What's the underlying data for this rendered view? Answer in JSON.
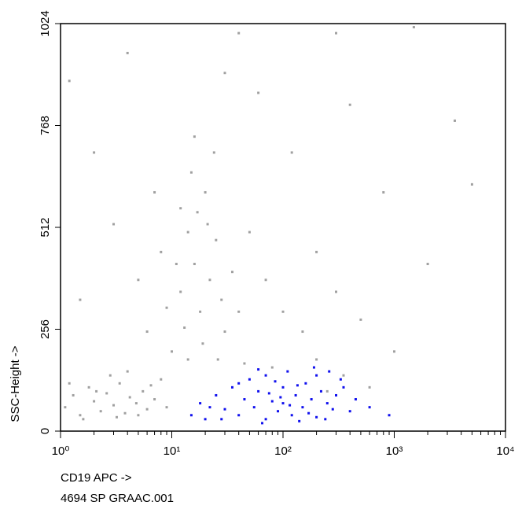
{
  "chart_data": {
    "type": "scatter",
    "x_label": "CD19 APC ->",
    "x_sublabel": "4694 SP GRAAC.001",
    "y_label": "SSC-Height ->",
    "y_label_color": "#00d8e8",
    "xscale": "log",
    "xlim": [
      1,
      10000
    ],
    "xticks": [
      {
        "value": 1,
        "label": "10⁰"
      },
      {
        "value": 10,
        "label": "10¹"
      },
      {
        "value": 100,
        "label": "10²"
      },
      {
        "value": 1000,
        "label": "10³"
      },
      {
        "value": 10000,
        "label": "10⁴"
      }
    ],
    "xminorticks": [
      2,
      3,
      4,
      5,
      6,
      7,
      8,
      9,
      20,
      30,
      40,
      50,
      60,
      70,
      80,
      90,
      200,
      300,
      400,
      500,
      600,
      700,
      800,
      900,
      2000,
      3000,
      4000,
      5000,
      6000,
      7000,
      8000,
      9000
    ],
    "ylim": [
      0,
      1024
    ],
    "yticks": [
      0,
      256,
      512,
      768,
      1024
    ],
    "series": [
      {
        "color": "#a0a0a0",
        "x": [
          1.1,
          1.3,
          1.5,
          1.8,
          2,
          2.3,
          2.6,
          3,
          3.4,
          3.8,
          4.2,
          4.8,
          5.5,
          6,
          7,
          8,
          1.2,
          1.6,
          2.8,
          3.2,
          5,
          6.5,
          9,
          4,
          2.1,
          10,
          12,
          14,
          16,
          18,
          20,
          13,
          15,
          22,
          25,
          11,
          17,
          19,
          24,
          28,
          30,
          9,
          8,
          14,
          21,
          26,
          35,
          40,
          12,
          16,
          6,
          5,
          7,
          50,
          70,
          100,
          150,
          200,
          300,
          500,
          800,
          1000,
          2000,
          3500,
          5000,
          60,
          30,
          120,
          400,
          2,
          3,
          1.5,
          1.2,
          4,
          40,
          300,
          1500,
          200,
          350,
          600,
          250,
          80,
          45
        ],
        "values": [
          60,
          90,
          40,
          110,
          75,
          50,
          95,
          65,
          120,
          45,
          85,
          70,
          100,
          55,
          80,
          130,
          120,
          30,
          140,
          35,
          40,
          115,
          60,
          150,
          100,
          200,
          350,
          500,
          420,
          300,
          600,
          260,
          650,
          380,
          480,
          420,
          550,
          220,
          700,
          330,
          250,
          310,
          450,
          180,
          520,
          180,
          400,
          300,
          560,
          740,
          250,
          380,
          600,
          500,
          380,
          300,
          250,
          450,
          350,
          280,
          600,
          200,
          420,
          780,
          620,
          850,
          900,
          700,
          820,
          700,
          520,
          330,
          880,
          950,
          1000,
          1000,
          1015,
          180,
          140,
          110,
          100,
          160,
          170
        ]
      },
      {
        "color": "#1010ee",
        "x": [
          15,
          18,
          20,
          25,
          30,
          35,
          40,
          45,
          50,
          55,
          60,
          70,
          70,
          80,
          90,
          100,
          100,
          110,
          120,
          130,
          150,
          160,
          180,
          200,
          200,
          220,
          250,
          280,
          300,
          350,
          400,
          450,
          600,
          900,
          40,
          65,
          85,
          140,
          170,
          240,
          75,
          95,
          115,
          135,
          28,
          22,
          330,
          260,
          190,
          60
        ],
        "values": [
          40,
          70,
          30,
          90,
          55,
          110,
          40,
          80,
          130,
          60,
          100,
          30,
          140,
          75,
          50,
          110,
          70,
          150,
          40,
          90,
          60,
          120,
          80,
          35,
          140,
          100,
          70,
          55,
          90,
          110,
          50,
          80,
          60,
          40,
          120,
          20,
          125,
          25,
          45,
          30,
          95,
          85,
          65,
          115,
          30,
          60,
          130,
          150,
          160,
          155
        ]
      }
    ]
  }
}
